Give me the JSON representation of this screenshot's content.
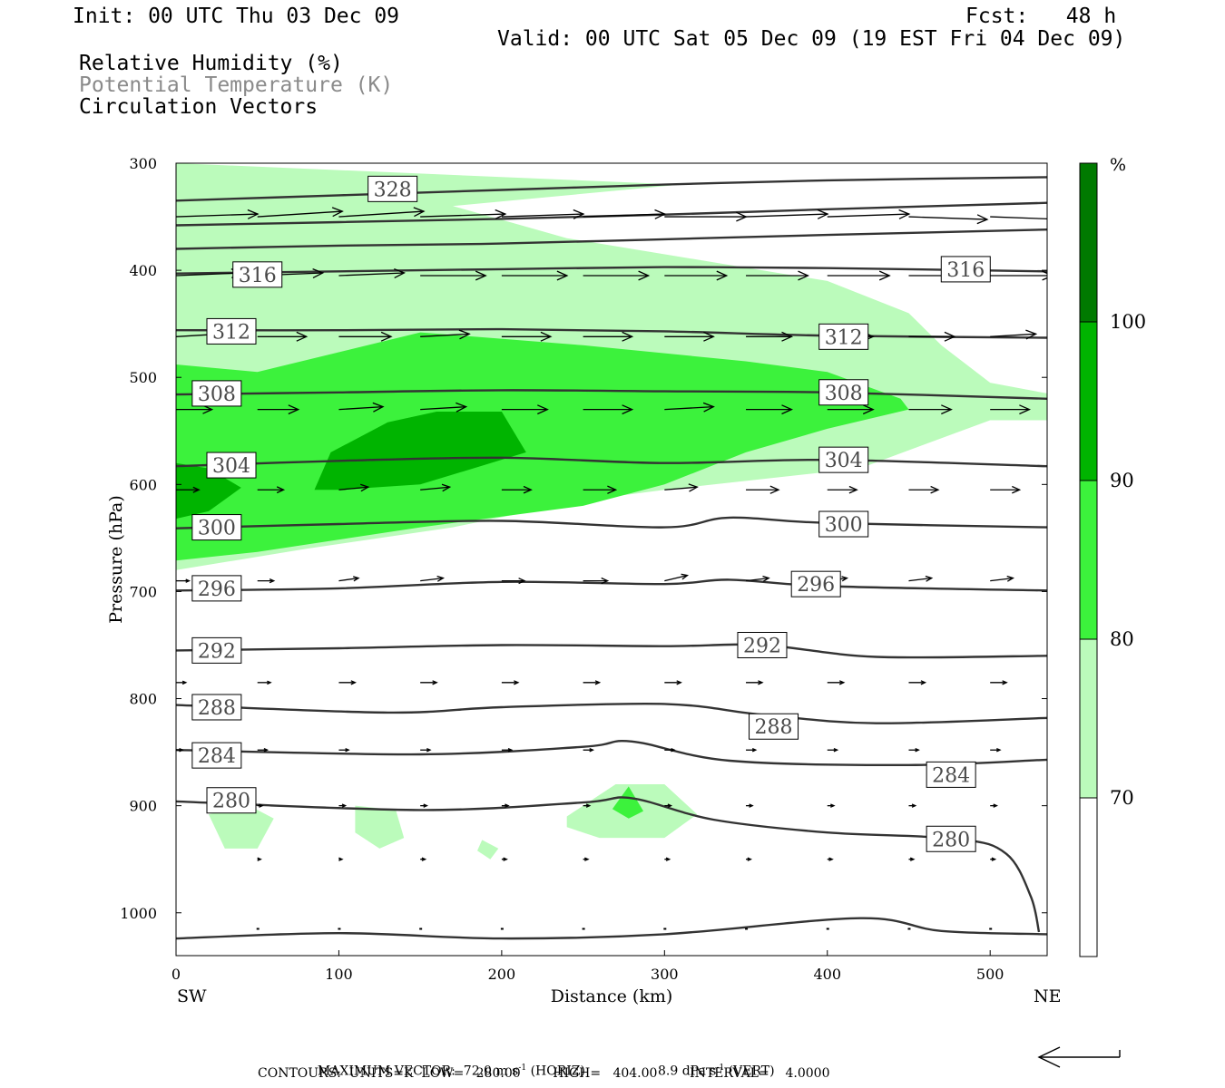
{
  "header": {
    "init": "Init: 00 UTC Thu 03 Dec 09",
    "fcst": "Fcst:   48 h",
    "valid": "Valid: 00 UTC Sat 05 Dec 09 (19 EST Fri 04 Dec 09)",
    "field1": "Relative Humidity (%)",
    "field2": "Potential Temperature (K)",
    "field3": "Circulation Vectors"
  },
  "footer": {
    "line1_label": "MAXIMUM VECTOR:",
    "horiz_value": "72.0 m s",
    "horiz_exp": "-1",
    "horiz_tag": "(HORIZ)",
    "vert_value": "8.9 dPa s",
    "vert_exp": "-1",
    "vert_tag": "(VERT)",
    "line2": "CONTOURS:  UNITS=K  LOW=   280.00        HIGH=   404.00        INTERVAL=    4.0000"
  },
  "colors": {
    "rh_70_80": "#bbfbbb",
    "rh_80_90": "#3cf23c",
    "rh_90_100": "#00b400",
    "rh_100": "#007a00",
    "contour": "#333333",
    "vector": "#000000"
  },
  "chart_data": {
    "type": "contour_cross_section",
    "x": {
      "label": "Distance (km)",
      "range": [
        0,
        535
      ],
      "ticks": [
        0,
        100,
        200,
        300,
        400,
        500
      ],
      "ends": [
        "SW",
        "NE"
      ]
    },
    "y": {
      "label": "Pressure (hPa)",
      "range": [
        300,
        1040
      ],
      "inverted": true,
      "ticks": [
        300,
        400,
        500,
        600,
        700,
        800,
        900,
        1000
      ]
    },
    "colorbar": {
      "unit": "%",
      "levels": [
        70,
        80,
        90,
        100
      ],
      "colors": [
        "#ffffff",
        "#bbfbbb",
        "#3cf23c",
        "#00b400",
        "#007a00"
      ]
    },
    "theta_labels": [
      {
        "value": "328",
        "x": 133,
        "p": 324
      },
      {
        "value": "316",
        "x": 50,
        "p": 404
      },
      {
        "value": "316",
        "x": 485,
        "p": 399
      },
      {
        "value": "312",
        "x": 34,
        "p": 457
      },
      {
        "value": "312",
        "x": 410,
        "p": 462
      },
      {
        "value": "308",
        "x": 25,
        "p": 515
      },
      {
        "value": "308",
        "x": 410,
        "p": 514
      },
      {
        "value": "304",
        "x": 34,
        "p": 582
      },
      {
        "value": "304",
        "x": 410,
        "p": 577
      },
      {
        "value": "300",
        "x": 25,
        "p": 640
      },
      {
        "value": "300",
        "x": 410,
        "p": 637
      },
      {
        "value": "296",
        "x": 25,
        "p": 697
      },
      {
        "value": "296",
        "x": 393,
        "p": 693
      },
      {
        "value": "292",
        "x": 25,
        "p": 755
      },
      {
        "value": "292",
        "x": 360,
        "p": 750
      },
      {
        "value": "288",
        "x": 25,
        "p": 808
      },
      {
        "value": "288",
        "x": 367,
        "p": 826
      },
      {
        "value": "284",
        "x": 25,
        "p": 853
      },
      {
        "value": "284",
        "x": 476,
        "p": 871
      },
      {
        "value": "280",
        "x": 34,
        "p": 895
      },
      {
        "value": "280",
        "x": 476,
        "p": 931
      }
    ],
    "theta_lines": [
      [
        [
          0,
          335
        ],
        [
          100,
          330
        ],
        [
          200,
          325
        ],
        [
          300,
          320
        ],
        [
          400,
          316
        ],
        [
          535,
          313
        ]
      ],
      [
        [
          0,
          358
        ],
        [
          100,
          355
        ],
        [
          200,
          352
        ],
        [
          300,
          348
        ],
        [
          400,
          343
        ],
        [
          535,
          337
        ]
      ],
      [
        [
          0,
          380
        ],
        [
          100,
          377
        ],
        [
          200,
          375
        ],
        [
          300,
          371
        ],
        [
          400,
          367
        ],
        [
          535,
          362
        ]
      ],
      [
        [
          0,
          403
        ],
        [
          100,
          401
        ],
        [
          200,
          399
        ],
        [
          300,
          397
        ],
        [
          400,
          398
        ],
        [
          535,
          401
        ]
      ],
      [
        [
          0,
          456
        ],
        [
          100,
          456
        ],
        [
          200,
          455
        ],
        [
          300,
          457
        ],
        [
          400,
          461
        ],
        [
          535,
          463
        ]
      ],
      [
        [
          0,
          516
        ],
        [
          100,
          514
        ],
        [
          200,
          512
        ],
        [
          300,
          513
        ],
        [
          400,
          514
        ],
        [
          535,
          520
        ]
      ],
      [
        [
          0,
          583
        ],
        [
          100,
          578
        ],
        [
          200,
          575
        ],
        [
          300,
          580
        ],
        [
          400,
          577
        ],
        [
          535,
          583
        ]
      ],
      [
        [
          0,
          641
        ],
        [
          100,
          637
        ],
        [
          200,
          634
        ],
        [
          300,
          640
        ],
        [
          340,
          631
        ],
        [
          400,
          636
        ],
        [
          535,
          640
        ]
      ],
      [
        [
          0,
          699
        ],
        [
          100,
          697
        ],
        [
          200,
          691
        ],
        [
          300,
          693
        ],
        [
          340,
          689
        ],
        [
          400,
          695
        ],
        [
          535,
          699
        ]
      ],
      [
        [
          0,
          755
        ],
        [
          100,
          753
        ],
        [
          200,
          750
        ],
        [
          300,
          751
        ],
        [
          360,
          750
        ],
        [
          430,
          761
        ],
        [
          535,
          760
        ]
      ],
      [
        [
          0,
          806
        ],
        [
          130,
          813
        ],
        [
          200,
          808
        ],
        [
          300,
          805
        ],
        [
          360,
          815
        ],
        [
          430,
          823
        ],
        [
          535,
          818
        ]
      ],
      [
        [
          0,
          848
        ],
        [
          150,
          852
        ],
        [
          250,
          845
        ],
        [
          280,
          840
        ],
        [
          340,
          858
        ],
        [
          450,
          862
        ],
        [
          535,
          857
        ]
      ],
      [
        [
          0,
          896
        ],
        [
          150,
          904
        ],
        [
          250,
          897
        ],
        [
          280,
          893
        ],
        [
          330,
          913
        ],
        [
          400,
          925
        ],
        [
          480,
          931
        ],
        [
          510,
          945
        ],
        [
          525,
          985
        ],
        [
          530,
          1018
        ]
      ],
      [
        [
          0,
          1024
        ],
        [
          100,
          1019
        ],
        [
          200,
          1024
        ],
        [
          300,
          1020
        ],
        [
          420,
          1005
        ],
        [
          470,
          1017
        ],
        [
          535,
          1020
        ]
      ]
    ],
    "rh_regions": [
      {
        "level": 70,
        "path": [
          [
            0,
            300
          ],
          [
            310,
            320
          ],
          [
            170,
            340
          ],
          [
            240,
            370
          ],
          [
            340,
            395
          ],
          [
            400,
            410
          ],
          [
            450,
            440
          ],
          [
            470,
            470
          ],
          [
            500,
            505
          ],
          [
            535,
            515
          ],
          [
            535,
            540
          ],
          [
            500,
            540
          ],
          [
            420,
            585
          ],
          [
            300,
            605
          ],
          [
            250,
            615
          ],
          [
            170,
            640
          ],
          [
            80,
            660
          ],
          [
            0,
            680
          ]
        ]
      },
      {
        "level": 80,
        "path": [
          [
            0,
            488
          ],
          [
            50,
            495
          ],
          [
            150,
            458
          ],
          [
            250,
            470
          ],
          [
            350,
            485
          ],
          [
            400,
            495
          ],
          [
            445,
            520
          ],
          [
            450,
            530
          ],
          [
            400,
            548
          ],
          [
            350,
            570
          ],
          [
            300,
            600
          ],
          [
            250,
            620
          ],
          [
            150,
            640
          ],
          [
            50,
            663
          ],
          [
            0,
            671
          ]
        ]
      },
      {
        "level": 90,
        "path": [
          [
            85,
            605
          ],
          [
            95,
            570
          ],
          [
            130,
            542
          ],
          [
            160,
            532
          ],
          [
            200,
            532
          ],
          [
            215,
            570
          ],
          [
            150,
            600
          ],
          [
            100,
            605
          ]
        ]
      },
      {
        "level": 90,
        "path": [
          [
            0,
            580
          ],
          [
            20,
            585
          ],
          [
            40,
            603
          ],
          [
            20,
            625
          ],
          [
            0,
            632
          ]
        ]
      },
      {
        "level": 70,
        "path": [
          [
            20,
            908
          ],
          [
            45,
            900
          ],
          [
            60,
            912
          ],
          [
            50,
            940
          ],
          [
            30,
            940
          ]
        ]
      },
      {
        "level": 70,
        "path": [
          [
            110,
            900
          ],
          [
            135,
            904
          ],
          [
            140,
            930
          ],
          [
            125,
            940
          ],
          [
            110,
            925
          ]
        ]
      },
      {
        "level": 70,
        "path": [
          [
            188,
            932
          ],
          [
            198,
            940
          ],
          [
            193,
            950
          ],
          [
            185,
            942
          ]
        ]
      },
      {
        "level": 70,
        "path": [
          [
            240,
            910
          ],
          [
            270,
            880
          ],
          [
            300,
            880
          ],
          [
            320,
            908
          ],
          [
            300,
            930
          ],
          [
            260,
            930
          ],
          [
            240,
            920
          ]
        ]
      },
      {
        "level": 80,
        "path": [
          [
            268,
            903
          ],
          [
            278,
            882
          ],
          [
            287,
            905
          ],
          [
            278,
            912
          ]
        ]
      }
    ],
    "vectors": [
      {
        "p": 350,
        "x": [
          0,
          50,
          100,
          150,
          200,
          250,
          300,
          350,
          400,
          450,
          500
        ],
        "u": [
          50,
          52,
          52,
          52,
          50,
          50,
          50,
          50,
          50,
          48,
          45
        ],
        "w": [
          -1,
          -2,
          -2,
          -1,
          -1,
          -1,
          0,
          -1,
          -1,
          1,
          1
        ]
      },
      {
        "p": 405,
        "x": [
          0,
          50,
          100,
          150,
          200,
          250,
          300,
          350,
          400,
          450,
          500
        ],
        "u": [
          40,
          40,
          40,
          40,
          40,
          40,
          38,
          38,
          38,
          38,
          38
        ],
        "w": [
          -1,
          -1,
          -1,
          0,
          0,
          0,
          0,
          0,
          0,
          0,
          0
        ]
      },
      {
        "p": 462,
        "x": [
          0,
          50,
          100,
          150,
          200,
          250,
          300,
          350,
          400,
          450,
          500
        ],
        "u": [
          28,
          30,
          32,
          30,
          30,
          30,
          30,
          28,
          28,
          28,
          28
        ],
        "w": [
          -1,
          0,
          0,
          -1,
          0,
          0,
          0,
          0,
          0,
          0,
          -1
        ]
      },
      {
        "p": 530,
        "x": [
          0,
          50,
          100,
          150,
          200,
          250,
          300,
          350,
          400,
          450,
          500
        ],
        "u": [
          22,
          25,
          27,
          28,
          28,
          30,
          30,
          28,
          28,
          26,
          24
        ],
        "w": [
          0,
          0,
          -1,
          -1,
          0,
          0,
          -1,
          0,
          0,
          0,
          0
        ]
      },
      {
        "p": 605,
        "x": [
          0,
          50,
          100,
          150,
          200,
          250,
          300,
          350,
          400,
          450,
          500
        ],
        "u": [
          14,
          16,
          18,
          18,
          18,
          20,
          20,
          20,
          18,
          18,
          18
        ],
        "w": [
          0,
          0,
          -1,
          -1,
          0,
          0,
          -1,
          0,
          0,
          0,
          0
        ]
      },
      {
        "p": 690,
        "x": [
          0,
          50,
          100,
          150,
          200,
          250,
          300,
          350,
          400,
          450,
          500
        ],
        "u": [
          8,
          10,
          12,
          14,
          14,
          15,
          14,
          14,
          12,
          14,
          14
        ],
        "w": [
          0,
          0,
          -1,
          -1,
          0,
          0,
          -2,
          -1,
          -1,
          -1,
          -1
        ]
      },
      {
        "p": 785,
        "x": [
          0,
          50,
          100,
          150,
          200,
          250,
          300,
          350,
          400,
          450,
          500
        ],
        "u": [
          6,
          8,
          10,
          10,
          10,
          10,
          10,
          10,
          10,
          10,
          10
        ],
        "w": [
          0,
          0,
          0,
          0,
          0,
          0,
          0,
          0,
          0,
          0,
          0
        ]
      },
      {
        "p": 848,
        "x": [
          0,
          50,
          100,
          150,
          200,
          250,
          300,
          350,
          400,
          450,
          500
        ],
        "u": [
          4,
          6,
          6,
          6,
          6,
          6,
          6,
          6,
          6,
          6,
          6
        ],
        "w": [
          0,
          0,
          0,
          0,
          0,
          0,
          0,
          0,
          0,
          0,
          0
        ]
      },
      {
        "p": 900,
        "x": [
          50,
          100,
          150,
          200,
          250,
          300,
          350,
          400,
          450,
          500
        ],
        "u": [
          3,
          4,
          4,
          4,
          4,
          4,
          4,
          4,
          4,
          4
        ],
        "w": [
          0,
          0,
          0,
          0,
          0,
          0,
          0,
          0,
          0,
          0
        ]
      },
      {
        "p": 950,
        "x": [
          50,
          100,
          150,
          200,
          250,
          300,
          350,
          400,
          450,
          500
        ],
        "u": [
          2,
          2,
          3,
          3,
          3,
          3,
          3,
          3,
          3,
          3
        ],
        "w": [
          0,
          0,
          0,
          0,
          0,
          0,
          0,
          0,
          0,
          0
        ]
      },
      {
        "p": 1015,
        "x": [
          50,
          100,
          150,
          200,
          250,
          300,
          350,
          400,
          450,
          500
        ],
        "u": [
          1,
          1,
          1,
          1,
          1,
          1,
          1,
          1,
          1,
          1
        ],
        "w": [
          0,
          0,
          0,
          0,
          0,
          0,
          0,
          0,
          0,
          0
        ]
      }
    ]
  }
}
